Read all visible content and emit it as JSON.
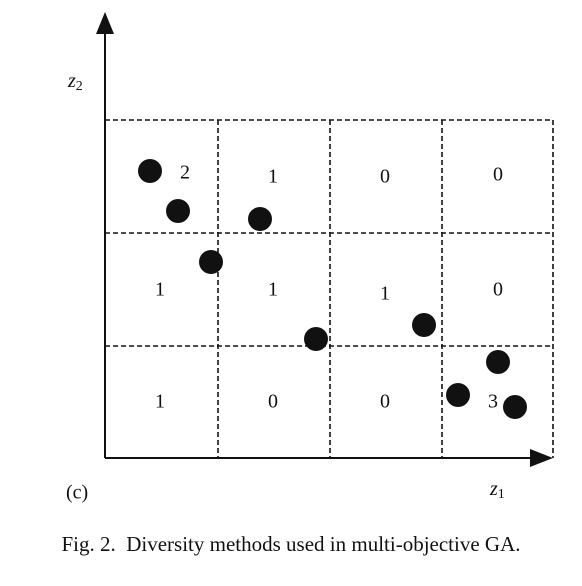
{
  "panel_label": "(c)",
  "y_axis": {
    "symbol": "z",
    "subscript": "2"
  },
  "x_axis": {
    "symbol": "z",
    "subscript": "1"
  },
  "cells": [
    [
      2,
      1,
      0,
      0
    ],
    [
      1,
      1,
      1,
      0
    ],
    [
      1,
      0,
      0,
      3
    ]
  ],
  "caption": "Fig. 2.  Diversity methods used in multi-objective GA."
}
